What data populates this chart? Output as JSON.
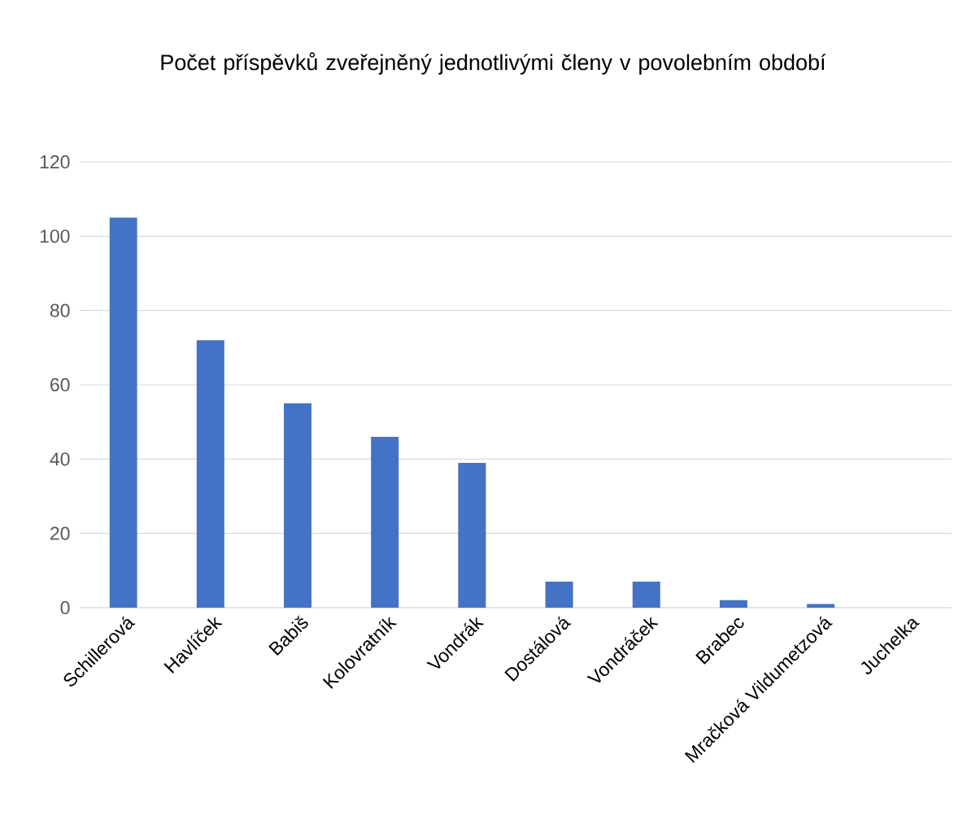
{
  "chart_data": {
    "type": "bar",
    "title": "Počet příspěvků zveřejněný jednotlivými členy v povolebním období",
    "categories": [
      "Schillerová",
      "Havlíček",
      "Babiš",
      "Kolovratník",
      "Vondrák",
      "Dostálová",
      "Vondráček",
      "Brabec",
      "Mračková Vildumetzová",
      "Juchelka"
    ],
    "values": [
      105,
      72,
      55,
      46,
      39,
      7,
      7,
      2,
      1,
      0
    ],
    "color": "#4472c4",
    "ylim": [
      0,
      120
    ],
    "yticks": [
      0,
      20,
      40,
      60,
      80,
      100,
      120
    ],
    "grid": "y"
  }
}
